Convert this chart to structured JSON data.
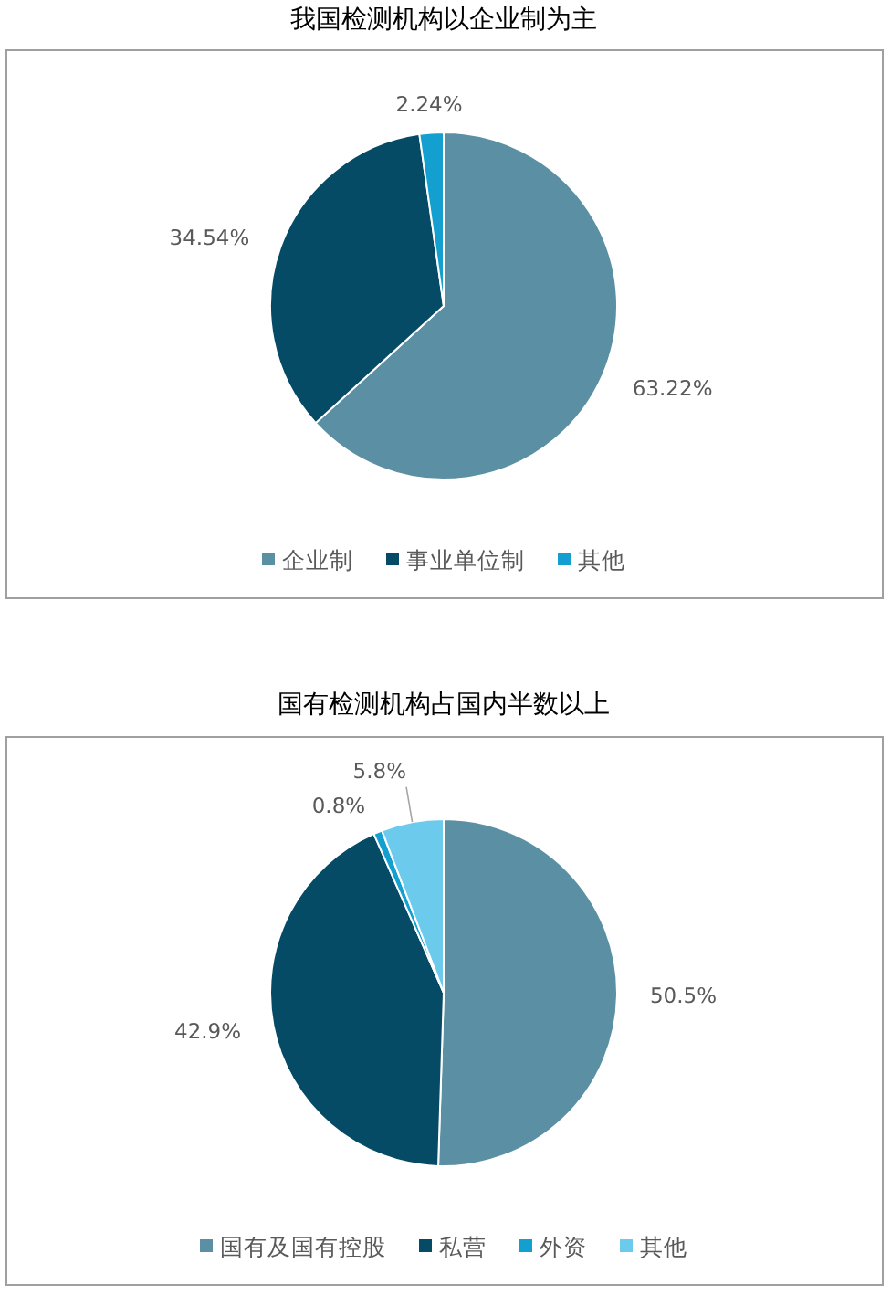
{
  "chart_data": [
    {
      "type": "pie",
      "title": "我国检测机构以企业制为主",
      "categories": [
        "企业制",
        "事业单位制",
        "其他"
      ],
      "values": [
        63.22,
        34.54,
        2.24
      ],
      "value_labels": [
        "63.22%",
        "34.54%",
        "2.24%"
      ],
      "colors": [
        "#5b8fa4",
        "#064b66",
        "#139fd0"
      ],
      "legend": "bottom"
    },
    {
      "type": "pie",
      "title": "国有检测机构占国内半数以上",
      "categories": [
        "国有及国有控股",
        "私营",
        "外资",
        "其他"
      ],
      "values": [
        50.5,
        42.9,
        0.8,
        5.8
      ],
      "value_labels": [
        "50.5%",
        "42.9%",
        "0.8%",
        "5.8%"
      ],
      "colors": [
        "#5b8fa4",
        "#064b66",
        "#139fd0",
        "#6ccbec"
      ],
      "legend": "bottom"
    }
  ]
}
